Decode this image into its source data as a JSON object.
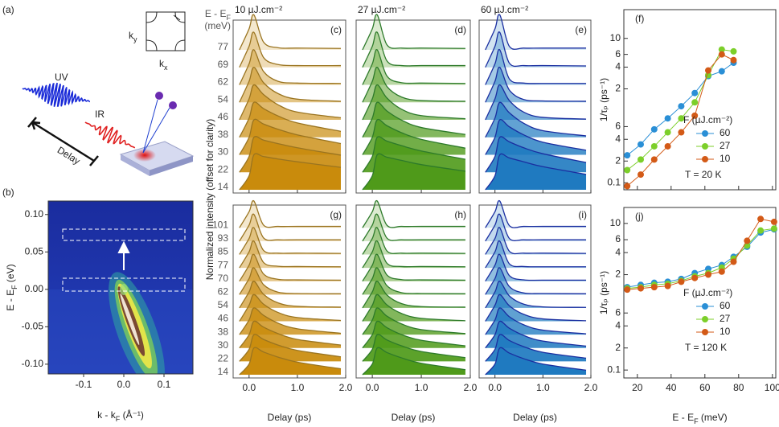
{
  "diagram": {
    "label": "(a)",
    "uv": "UV",
    "ir": "IR",
    "delay": "Delay",
    "ky": [
      "k",
      "y"
    ],
    "kx": [
      "k",
      "x"
    ]
  },
  "shared": {
    "ylabel": "Normalized intensity (offset for clarity)"
  },
  "chart_data": [
    {
      "type": "image",
      "label": "(b)",
      "xlabel": [
        "k - k",
        "F",
        " (Å⁻¹)"
      ],
      "ylabel": [
        "E - E",
        "F",
        " (eV)"
      ],
      "xlim": [
        -0.188,
        0.172
      ],
      "xticks": [
        -0.1,
        {
          "value": 0,
          "label": "0.0"
        },
        0.1
      ],
      "ylim": [
        -0.113,
        0.118
      ],
      "yticks": [
        {
          "value": -0.1,
          "label": "-0.10"
        },
        -0.05,
        {
          "value": 0,
          "label": "0.00"
        },
        0.05,
        {
          "value": 0.1,
          "label": "0.10"
        }
      ]
    },
    {
      "type": "ridgeline",
      "label": "(c)",
      "title": "10 µJ.cm⁻²",
      "row_header": [
        "E - E",
        "F"
      ],
      "row_unit": "(meV)",
      "color": "#c98b0c",
      "line_color": "#9a7420",
      "x": [
        -0.2,
        0,
        0.1,
        0.3,
        0.6,
        1,
        1.9
      ],
      "xlim": [
        -0.33,
        2
      ],
      "xticks": [
        0,
        1,
        2
      ],
      "xtick_labels": false,
      "series": [
        {
          "name": "77",
          "values": [
            0,
            0.6,
            1,
            0.22,
            0.06,
            0.05,
            0.04
          ]
        },
        {
          "name": "69",
          "values": [
            0,
            0.6,
            1,
            0.28,
            0.08,
            0.05,
            0.05
          ]
        },
        {
          "name": "62",
          "values": [
            0,
            0.6,
            1,
            0.38,
            0.1,
            0.05,
            0.04
          ]
        },
        {
          "name": "54",
          "values": [
            0,
            0.6,
            1,
            0.56,
            0.25,
            0.09,
            0.03
          ]
        },
        {
          "name": "46",
          "values": [
            0,
            0.6,
            1,
            0.72,
            0.43,
            0.22,
            0.06
          ]
        },
        {
          "name": "38",
          "values": [
            0,
            0.55,
            1,
            0.82,
            0.61,
            0.41,
            0.17
          ]
        },
        {
          "name": "30",
          "values": [
            0,
            0.5,
            1,
            0.88,
            0.73,
            0.57,
            0.32
          ]
        },
        {
          "name": "22",
          "values": [
            0,
            0.45,
            1,
            0.92,
            0.82,
            0.7,
            0.49
          ]
        },
        {
          "name": "14",
          "values": [
            0,
            0.4,
            1,
            0.95,
            0.88,
            0.8,
            0.64
          ]
        }
      ]
    },
    {
      "type": "ridgeline",
      "label": "(d)",
      "title": "27 µJ.cm⁻²",
      "color": "#4f9a1a",
      "line_color": "#2d7a2a",
      "x": [
        -0.2,
        0,
        0.1,
        0.3,
        0.6,
        1,
        1.9
      ],
      "xlim": [
        -0.33,
        2
      ],
      "xticks": [
        0,
        1,
        2
      ],
      "xtick_labels": false,
      "series": [
        {
          "values": [
            0,
            0.6,
            1,
            0.14,
            0.05,
            0.05,
            0.04
          ]
        },
        {
          "values": [
            0,
            0.6,
            1,
            0.18,
            0.05,
            0.05,
            0.05
          ]
        },
        {
          "values": [
            0,
            0.6,
            1,
            0.25,
            0.06,
            0.05,
            0.04
          ]
        },
        {
          "values": [
            0,
            0.6,
            1,
            0.45,
            0.15,
            0.05,
            0.03
          ]
        },
        {
          "values": [
            0,
            0.6,
            1,
            0.62,
            0.3,
            0.12,
            0.03
          ]
        },
        {
          "values": [
            0,
            0.55,
            1,
            0.75,
            0.49,
            0.28,
            0.08
          ]
        },
        {
          "values": [
            0,
            0.5,
            1,
            0.83,
            0.63,
            0.44,
            0.19
          ]
        },
        {
          "values": [
            0,
            0.45,
            1,
            0.89,
            0.76,
            0.61,
            0.37
          ]
        },
        {
          "values": [
            0,
            0.4,
            1,
            0.93,
            0.84,
            0.72,
            0.53
          ]
        }
      ]
    },
    {
      "type": "ridgeline",
      "label": "(e)",
      "title": "60 µJ.cm⁻²",
      "color": "#1f7ac0",
      "line_color": "#1a2ea0",
      "x": [
        -0.2,
        0,
        0.1,
        0.3,
        0.6,
        1,
        1.9
      ],
      "xlim": [
        -0.33,
        2
      ],
      "xticks": [
        0,
        1,
        2
      ],
      "xtick_labels": false,
      "series": [
        {
          "values": [
            0,
            0.6,
            1,
            0.1,
            0.05,
            0.05,
            0.05
          ]
        },
        {
          "values": [
            0,
            0.6,
            1,
            0.12,
            0.05,
            0.05,
            0.04
          ]
        },
        {
          "values": [
            0,
            0.6,
            1,
            0.17,
            0.05,
            0.04,
            0.04
          ]
        },
        {
          "values": [
            0,
            0.6,
            1,
            0.35,
            0.08,
            0.04,
            0.03
          ]
        },
        {
          "values": [
            0,
            0.6,
            1,
            0.55,
            0.22,
            0.07,
            0.02
          ]
        },
        {
          "values": [
            0,
            0.55,
            1,
            0.7,
            0.4,
            0.19,
            0.04
          ]
        },
        {
          "values": [
            0,
            0.5,
            1,
            0.8,
            0.57,
            0.36,
            0.13
          ]
        },
        {
          "values": [
            0,
            0.45,
            1,
            0.87,
            0.7,
            0.53,
            0.28
          ]
        },
        {
          "values": [
            0,
            0.4,
            1,
            0.91,
            0.8,
            0.66,
            0.44
          ]
        }
      ]
    },
    {
      "type": "ridgeline",
      "label": "(g)",
      "xlabel": "Delay (ps)",
      "color": "#c98b0c",
      "line_color": "#9a7420",
      "x": [
        -0.2,
        0,
        0.1,
        0.3,
        0.6,
        1,
        1.9
      ],
      "xlim": [
        -0.33,
        2
      ],
      "xticks": [
        {
          "value": 0,
          "label": "0.0"
        },
        {
          "value": 1,
          "label": "1.0"
        },
        {
          "value": 2,
          "label": "2.0"
        }
      ],
      "series": [
        {
          "name": "101",
          "values": [
            0,
            0.6,
            1,
            0.1,
            0.05,
            0.05,
            0.05
          ]
        },
        {
          "name": "93",
          "values": [
            0,
            0.6,
            1,
            0.12,
            0.05,
            0.05,
            0.05
          ]
        },
        {
          "name": "85",
          "values": [
            0,
            0.6,
            1,
            0.15,
            0.05,
            0.05,
            0.04
          ]
        },
        {
          "name": "77",
          "values": [
            0,
            0.6,
            1,
            0.2,
            0.06,
            0.05,
            0.04
          ]
        },
        {
          "name": "70",
          "values": [
            0,
            0.6,
            1,
            0.27,
            0.07,
            0.05,
            0.04
          ]
        },
        {
          "name": "62",
          "values": [
            0,
            0.6,
            1,
            0.37,
            0.09,
            0.04,
            0.03
          ]
        },
        {
          "name": "54",
          "values": [
            0,
            0.6,
            1,
            0.51,
            0.19,
            0.06,
            0.03
          ]
        },
        {
          "name": "46",
          "values": [
            0,
            0.6,
            1,
            0.64,
            0.33,
            0.14,
            0.03
          ]
        },
        {
          "name": "38",
          "values": [
            0,
            0.55,
            1,
            0.72,
            0.43,
            0.22,
            0.05
          ]
        },
        {
          "name": "30",
          "values": [
            0,
            0.5,
            1,
            0.78,
            0.54,
            0.32,
            0.11
          ]
        },
        {
          "name": "22",
          "values": [
            0,
            0.45,
            1,
            0.82,
            0.61,
            0.41,
            0.17
          ]
        },
        {
          "name": "14",
          "values": [
            0,
            0.4,
            1,
            0.85,
            0.66,
            0.47,
            0.22
          ]
        }
      ]
    },
    {
      "type": "ridgeline",
      "label": "(h)",
      "xlabel": "Delay (ps)",
      "color": "#4f9a1a",
      "line_color": "#2d7a2a",
      "x": [
        -0.2,
        0,
        0.1,
        0.3,
        0.6,
        1,
        1.9
      ],
      "xlim": [
        -0.33,
        2
      ],
      "xticks": [
        {
          "value": 0,
          "label": "0.0"
        },
        {
          "value": 1,
          "label": "1.0"
        },
        {
          "value": 2,
          "label": "2.0"
        }
      ],
      "series": [
        {
          "values": [
            0,
            0.6,
            1,
            0.09,
            0.05,
            0.05,
            0.05
          ]
        },
        {
          "values": [
            0,
            0.6,
            1,
            0.11,
            0.05,
            0.05,
            0.05
          ]
        },
        {
          "values": [
            0,
            0.6,
            1,
            0.13,
            0.05,
            0.05,
            0.04
          ]
        },
        {
          "values": [
            0,
            0.6,
            1,
            0.17,
            0.05,
            0.05,
            0.04
          ]
        },
        {
          "values": [
            0,
            0.6,
            1,
            0.23,
            0.06,
            0.05,
            0.04
          ]
        },
        {
          "values": [
            0,
            0.6,
            1,
            0.33,
            0.07,
            0.04,
            0.03
          ]
        },
        {
          "values": [
            0,
            0.6,
            1,
            0.48,
            0.16,
            0.05,
            0.03
          ]
        },
        {
          "values": [
            0,
            0.6,
            1,
            0.61,
            0.29,
            0.11,
            0.02
          ]
        },
        {
          "values": [
            0,
            0.55,
            1,
            0.69,
            0.4,
            0.19,
            0.04
          ]
        },
        {
          "values": [
            0,
            0.5,
            1,
            0.76,
            0.5,
            0.29,
            0.08
          ]
        },
        {
          "values": [
            0,
            0.45,
            1,
            0.8,
            0.58,
            0.37,
            0.14
          ]
        },
        {
          "values": [
            0,
            0.4,
            1,
            0.83,
            0.63,
            0.43,
            0.19
          ]
        }
      ]
    },
    {
      "type": "ridgeline",
      "label": "(i)",
      "xlabel": "Delay (ps)",
      "color": "#1f7ac0",
      "line_color": "#1a2ea0",
      "x": [
        -0.2,
        0,
        0.1,
        0.3,
        0.6,
        1,
        1.9
      ],
      "xlim": [
        -0.33,
        2
      ],
      "xticks": [
        {
          "value": 0,
          "label": "0.0"
        },
        {
          "value": 1,
          "label": "1.0"
        },
        {
          "value": 2,
          "label": "2.0"
        }
      ],
      "series": [
        {
          "values": [
            0,
            0.6,
            1,
            0.08,
            0.05,
            0.05,
            0.05
          ]
        },
        {
          "values": [
            0,
            0.6,
            1,
            0.1,
            0.05,
            0.05,
            0.05
          ]
        },
        {
          "values": [
            0,
            0.6,
            1,
            0.12,
            0.05,
            0.05,
            0.04
          ]
        },
        {
          "values": [
            0,
            0.6,
            1,
            0.15,
            0.05,
            0.04,
            0.04
          ]
        },
        {
          "values": [
            0,
            0.6,
            1,
            0.21,
            0.05,
            0.04,
            0.04
          ]
        },
        {
          "values": [
            0,
            0.6,
            1,
            0.3,
            0.06,
            0.04,
            0.03
          ]
        },
        {
          "values": [
            0,
            0.6,
            1,
            0.45,
            0.14,
            0.04,
            0.02
          ]
        },
        {
          "values": [
            0,
            0.6,
            1,
            0.58,
            0.26,
            0.09,
            0.02
          ]
        },
        {
          "values": [
            0,
            0.55,
            1,
            0.67,
            0.37,
            0.17,
            0.03
          ]
        },
        {
          "values": [
            0,
            0.5,
            1,
            0.74,
            0.47,
            0.26,
            0.07
          ]
        },
        {
          "values": [
            0,
            0.45,
            1,
            0.78,
            0.55,
            0.34,
            0.12
          ]
        },
        {
          "values": [
            0,
            0.4,
            1,
            0.81,
            0.6,
            0.4,
            0.17
          ]
        }
      ]
    },
    {
      "type": "line",
      "label": "(f)",
      "log_y": true,
      "ylabel": "1/τₚ (ps⁻¹)",
      "legend_title": "F (µJ.cm⁻²)",
      "note": "T = 20 K",
      "x": [
        14,
        22,
        30,
        38,
        46,
        54,
        62,
        70,
        77
      ],
      "xlim": [
        12,
        102
      ],
      "xticks": [
        20,
        40,
        60,
        80,
        100
      ],
      "xtick_labels": false,
      "ylim": [
        0.08,
        25
      ],
      "yticks": [
        0.1,
        {
          "value": 0.2,
          "label": "2"
        },
        {
          "value": 0.4,
          "label": "4"
        },
        {
          "value": 0.6,
          "label": "6"
        },
        {
          "value": 2,
          "label": "2"
        },
        {
          "value": 4,
          "label": "4"
        },
        {
          "value": 6,
          "label": "6"
        },
        10
      ],
      "series": [
        {
          "name": "60",
          "color": "#2a8fd6",
          "values": [
            0.24,
            0.34,
            0.55,
            0.78,
            1.15,
            1.75,
            3.0,
            3.5,
            4.6
          ]
        },
        {
          "name": "27",
          "color": "#7ccf2a",
          "values": [
            0.15,
            0.21,
            0.32,
            0.5,
            0.78,
            1.3,
            3.1,
            7.0,
            6.6
          ]
        },
        {
          "name": "10",
          "color": "#d35a17",
          "values": [
            0.09,
            0.13,
            0.21,
            0.32,
            0.5,
            0.85,
            3.6,
            6.0,
            5.0
          ]
        }
      ]
    },
    {
      "type": "line",
      "label": "(j)",
      "log_y": true,
      "ylabel": "1/τₚ (ps⁻¹)",
      "xlabel": [
        "E - E",
        "F",
        " (meV)"
      ],
      "legend_title": "F (µJ.cm⁻²)",
      "note": "T = 120 K",
      "x": [
        14,
        22,
        30,
        38,
        46,
        54,
        62,
        70,
        77,
        85,
        93,
        101
      ],
      "xlim": [
        12,
        102
      ],
      "xticks": [
        20,
        40,
        60,
        80,
        100
      ],
      "ylim": [
        0.078,
        16.5
      ],
      "yticks": [
        0.1,
        {
          "value": 0.2,
          "label": "2"
        },
        {
          "value": 0.4,
          "label": "4"
        },
        {
          "value": 0.6,
          "label": "6"
        },
        {
          "value": 2,
          "label": "2"
        },
        {
          "value": 4,
          "label": "4"
        },
        {
          "value": 6,
          "label": "6"
        },
        10
      ],
      "series": [
        {
          "name": "60",
          "color": "#2a8fd6",
          "values": [
            1.35,
            1.45,
            1.55,
            1.6,
            1.75,
            2.1,
            2.4,
            2.7,
            3.5,
            4.8,
            7.5,
            8.3
          ]
        },
        {
          "name": "27",
          "color": "#7ccf2a",
          "values": [
            1.3,
            1.35,
            1.45,
            1.5,
            1.65,
            1.9,
            2.1,
            2.5,
            3.3,
            5.0,
            8.0,
            8.5
          ]
        },
        {
          "name": "10",
          "color": "#d35a17",
          "values": [
            1.25,
            1.3,
            1.35,
            1.4,
            1.6,
            1.8,
            2.0,
            2.2,
            3.0,
            5.8,
            11.5,
            10.5
          ]
        }
      ]
    }
  ]
}
